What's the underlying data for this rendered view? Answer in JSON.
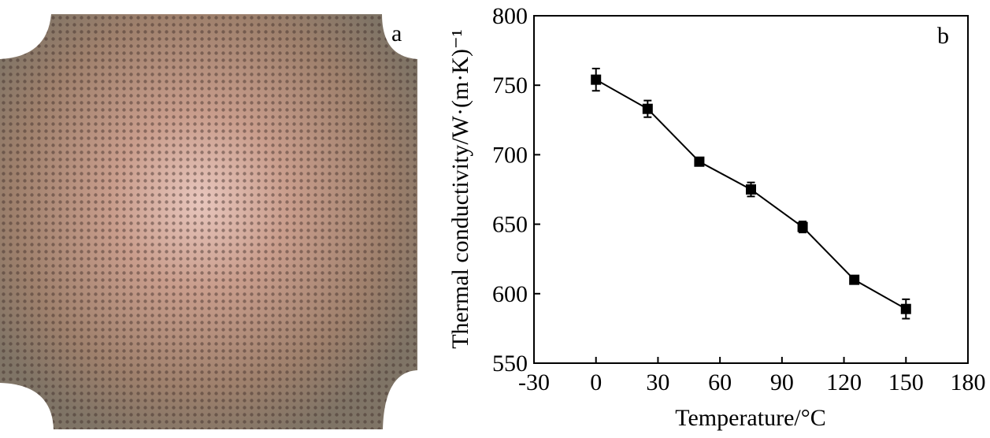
{
  "photo": {
    "label": "a"
  },
  "chart_data": {
    "type": "line",
    "panel_label": "b",
    "xlabel": "Temperature/°C",
    "ylabel": "Thermal conductivity/W·(m·K)⁻¹",
    "x": [
      0,
      25,
      50,
      75,
      100,
      125,
      150
    ],
    "series": [
      {
        "color": "#000000",
        "values": [
          754,
          733,
          695,
          675,
          648,
          610,
          589
        ],
        "errors": [
          8,
          6,
          2,
          5,
          4,
          2,
          7
        ]
      }
    ],
    "xlim": [
      -30,
      180
    ],
    "xticks": [
      -30,
      0,
      30,
      60,
      90,
      120,
      150,
      180
    ],
    "ylim": [
      550,
      800
    ],
    "yticks": [
      550,
      600,
      650,
      700,
      750,
      800
    ]
  }
}
